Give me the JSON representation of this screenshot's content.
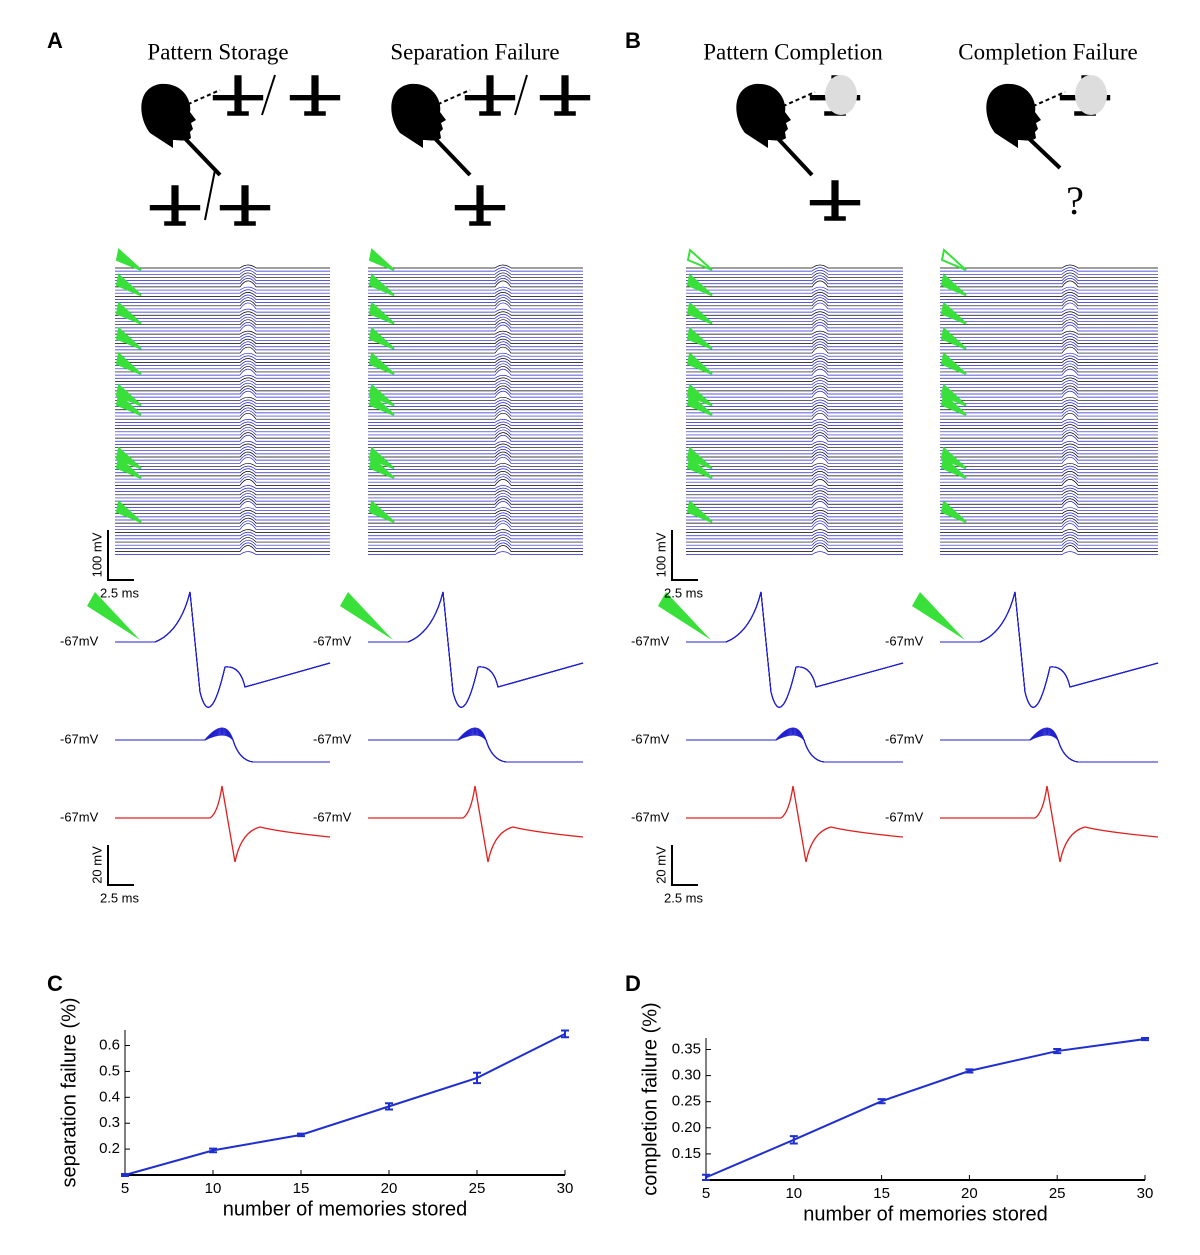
{
  "figure": {
    "panels": [
      {
        "label": "A",
        "titles": [
          "Pattern Storage",
          "Separation Failure"
        ]
      },
      {
        "label": "B",
        "titles": [
          "Pattern Completion",
          "Completion Failure"
        ]
      }
    ],
    "question_mark": "?",
    "scale_bars": {
      "upper": [
        "100 mV",
        "2.5 ms"
      ],
      "lower": [
        "20 mV",
        "2.5 ms"
      ]
    },
    "resting_label": "-67mV"
  },
  "chart_data": [
    {
      "type": "line",
      "panel": "C",
      "xlabel": "number of memories stored",
      "ylabel": "separation failure (%)",
      "x": [
        5,
        10,
        15,
        20,
        25,
        30
      ],
      "values": [
        0.1,
        0.195,
        0.255,
        0.365,
        0.475,
        0.645
      ],
      "errors": [
        0.004,
        0.007,
        0.005,
        0.012,
        0.02,
        0.013
      ],
      "color": "#1f2fcf",
      "xlim": [
        5,
        30
      ],
      "xticks": [
        5,
        10,
        15,
        20,
        25,
        30
      ],
      "ylim": [
        0.1,
        0.66
      ],
      "yticks": [
        0.2,
        0.3,
        0.4,
        0.5,
        0.6
      ]
    },
    {
      "type": "line",
      "panel": "D",
      "xlabel": "number of memories stored",
      "ylabel": "completion failure (%)",
      "x": [
        5,
        10,
        15,
        20,
        25,
        30
      ],
      "values": [
        0.105,
        0.177,
        0.251,
        0.309,
        0.347,
        0.37
      ],
      "errors": [
        0.005,
        0.007,
        0.004,
        0.003,
        0.004,
        0.002
      ],
      "color": "#1f2fcf",
      "xlim": [
        5,
        30
      ],
      "xticks": [
        5,
        10,
        15,
        20,
        25,
        30
      ],
      "ylim": [
        0.1,
        0.372
      ],
      "yticks": [
        0.15,
        {
          "value": 0.2,
          "label": "0.20"
        },
        0.25,
        {
          "value": 0.3,
          "label": "0.30"
        },
        0.35
      ]
    }
  ]
}
